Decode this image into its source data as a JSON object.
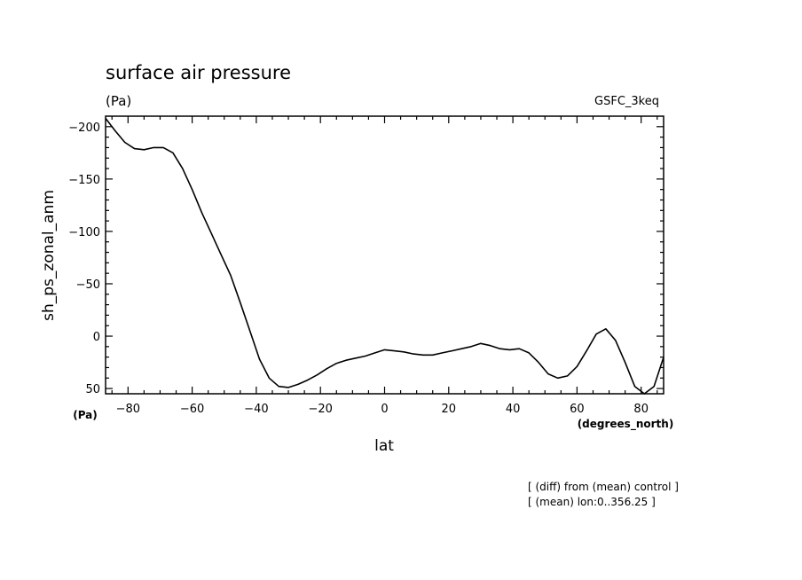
{
  "chart_data": {
    "type": "line",
    "title": "surface air pressure",
    "units_left": "(Pa)",
    "model_label": "GSFC_3keq",
    "ylabel": "sh_ps_zonal_anm",
    "yunits": "(Pa)",
    "xlabel": "lat",
    "xunits": "(degrees_north)",
    "notes": [
      "[ (diff) from (mean) control ]",
      "[ (mean) lon:0..356.25 ]"
    ],
    "xlim": [
      -87,
      87
    ],
    "ylim": [
      55,
      -210
    ],
    "y_inverted": true,
    "grid": false,
    "x_ticks": [
      -80,
      -60,
      -40,
      -20,
      0,
      20,
      40,
      60,
      80
    ],
    "x_tick_labels": [
      "−80",
      "−60",
      "−40",
      "−20",
      "0",
      "20",
      "40",
      "60",
      "80"
    ],
    "y_ticks": [
      -200,
      -150,
      -100,
      -50,
      0,
      50
    ],
    "y_tick_labels": [
      "−200",
      "−150",
      "−100",
      "−50",
      "0",
      "50"
    ],
    "series": [
      {
        "x": [
          -87,
          -84,
          -81,
          -78,
          -75,
          -72,
          -69,
          -66,
          -63,
          -60,
          -57,
          -54,
          -51,
          -48,
          -45,
          -42,
          -39,
          -36,
          -33,
          -30,
          -27,
          -24,
          -21,
          -18,
          -15,
          -12,
          -9,
          -6,
          -3,
          0,
          3,
          6,
          9,
          12,
          15,
          18,
          21,
          24,
          27,
          30,
          33,
          36,
          39,
          42,
          45,
          48,
          51,
          54,
          57,
          60,
          63,
          66,
          69,
          72,
          75,
          78,
          81,
          84,
          87
        ],
        "y": [
          -208,
          -196,
          -185,
          -179,
          -178,
          -180,
          -180,
          -175,
          -160,
          -140,
          -118,
          -98,
          -78,
          -58,
          -32,
          -5,
          22,
          40,
          48,
          49,
          46,
          42,
          37,
          31,
          26,
          23,
          21,
          19,
          16,
          13,
          14,
          15,
          17,
          18,
          18,
          16,
          14,
          12,
          10,
          7,
          9,
          12,
          13,
          12,
          16,
          25,
          36,
          40,
          38,
          29,
          14,
          -2,
          -7,
          4,
          25,
          48,
          57,
          48,
          20
        ]
      }
    ],
    "line_color": "#000000"
  }
}
